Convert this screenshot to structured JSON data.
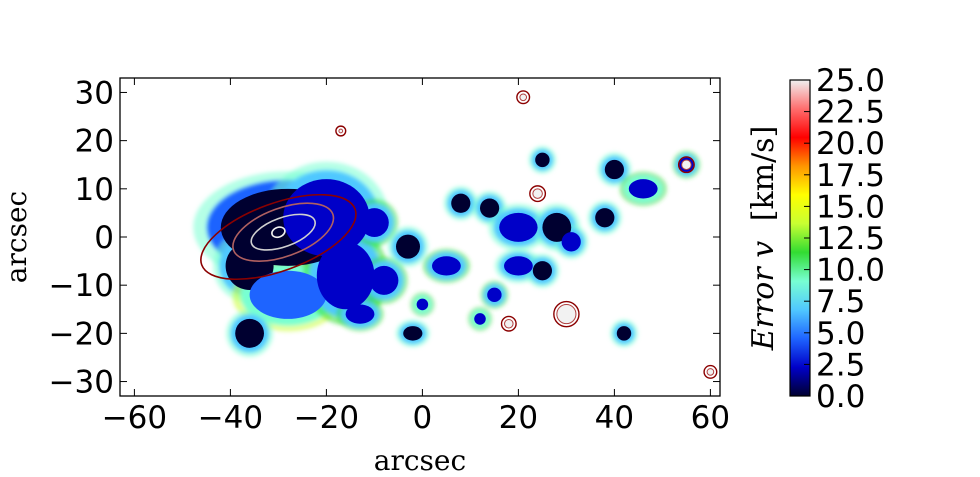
{
  "chart_data": {
    "type": "heatmap",
    "title": "",
    "xlabel": "arcsec",
    "ylabel": "arcsec",
    "xlim": [
      -63,
      62
    ],
    "ylim": [
      -33,
      33
    ],
    "xticks": [
      -60,
      -40,
      -20,
      0,
      20,
      40,
      60
    ],
    "xtick_labels": [
      "−60",
      "−40",
      "−20",
      "0",
      "20",
      "40",
      "60"
    ],
    "yticks": [
      -30,
      -20,
      -10,
      0,
      10,
      20,
      30
    ],
    "ytick_labels": [
      "−30",
      "−20",
      "−10",
      "0",
      "10",
      "20",
      "30"
    ],
    "colorbar": {
      "label": "Error v [km/s]",
      "label_parts": {
        "main": "Error v",
        "unit": "[km/s]"
      },
      "range": [
        0,
        25
      ],
      "ticks": [
        0,
        2.5,
        5,
        7.5,
        10,
        12.5,
        15,
        17.5,
        20,
        22.5,
        25
      ],
      "tick_labels": [
        "0.0",
        "2.5",
        "5.0",
        "7.5",
        "10.0",
        "12.5",
        "15.0",
        "17.5",
        "20.0",
        "22.5",
        "25.0"
      ],
      "colormap": [
        "#000030",
        "#0000c8",
        "#1e64ff",
        "#50c8ff",
        "#78ffd2",
        "#32dc32",
        "#c8ff32",
        "#ffff00",
        "#ff9600",
        "#ff0000",
        "#ff6e6e",
        "#f0f0f0"
      ]
    },
    "blobs": [
      {
        "x": -28,
        "y": 2,
        "rx": 14,
        "ry": 8,
        "v": 0.5
      },
      {
        "x": -20,
        "y": 4,
        "rx": 9,
        "ry": 8,
        "v": 1.2
      },
      {
        "x": -36,
        "y": -6,
        "rx": 5,
        "ry": 5,
        "v": 1.0
      },
      {
        "x": -28,
        "y": -12,
        "rx": 8,
        "ry": 5,
        "v": 3.5
      },
      {
        "x": -16,
        "y": -8,
        "rx": 6,
        "ry": 7,
        "v": 2.0
      },
      {
        "x": -36,
        "y": -20,
        "rx": 3,
        "ry": 3,
        "v": 1.0
      },
      {
        "x": -10,
        "y": 3,
        "rx": 3,
        "ry": 3,
        "v": 1.5
      },
      {
        "x": -8,
        "y": -9,
        "rx": 3,
        "ry": 3,
        "v": 1.5
      },
      {
        "x": -13,
        "y": -16,
        "rx": 3,
        "ry": 2,
        "v": 2.0
      },
      {
        "x": -3,
        "y": -2,
        "rx": 2.5,
        "ry": 2.5,
        "v": 1.0
      },
      {
        "x": 5,
        "y": -6,
        "rx": 3,
        "ry": 2,
        "v": 1.5
      },
      {
        "x": 8,
        "y": 7,
        "rx": 2,
        "ry": 2,
        "v": 1.0
      },
      {
        "x": 14,
        "y": 6,
        "rx": 2,
        "ry": 2,
        "v": 1.0
      },
      {
        "x": 20,
        "y": 2,
        "rx": 4,
        "ry": 3,
        "v": 1.2
      },
      {
        "x": 28,
        "y": 2,
        "rx": 3,
        "ry": 3,
        "v": 0.8
      },
      {
        "x": 20,
        "y": -6,
        "rx": 3,
        "ry": 2,
        "v": 1.2
      },
      {
        "x": 25,
        "y": -7,
        "rx": 2,
        "ry": 2,
        "v": 1.0
      },
      {
        "x": 31,
        "y": -1,
        "rx": 2,
        "ry": 2,
        "v": 1.2
      },
      {
        "x": 38,
        "y": 4,
        "rx": 2,
        "ry": 2,
        "v": 1.0
      },
      {
        "x": 40,
        "y": 14,
        "rx": 2,
        "ry": 2,
        "v": 1.0
      },
      {
        "x": 46,
        "y": 10,
        "rx": 3,
        "ry": 2,
        "v": 3.0
      },
      {
        "x": 25,
        "y": 16,
        "rx": 1.5,
        "ry": 1.5,
        "v": 1.0
      },
      {
        "x": -2,
        "y": -20,
        "rx": 2,
        "ry": 1.5,
        "v": 1.0
      },
      {
        "x": 42,
        "y": -20,
        "rx": 1.5,
        "ry": 1.5,
        "v": 1.0
      },
      {
        "x": 55,
        "y": 15,
        "rx": 1.5,
        "ry": 1.5,
        "v": 1.5
      },
      {
        "x": 15,
        "y": -12,
        "rx": 1.5,
        "ry": 1.5,
        "v": 1.5
      },
      {
        "x": 0,
        "y": -14,
        "rx": 1.2,
        "ry": 1.2,
        "v": 3.0
      },
      {
        "x": 12,
        "y": -17,
        "rx": 1.2,
        "ry": 1.2,
        "v": 3.0
      }
    ],
    "contours": [
      {
        "x": -30,
        "y": 0,
        "rx": 17,
        "ry": 7,
        "rotate": -20,
        "color": "#8b0000"
      },
      {
        "x": -29,
        "y": 1,
        "rx": 11,
        "ry": 5,
        "rotate": -20,
        "color": "#b06060"
      },
      {
        "x": -29,
        "y": 1,
        "rx": 7,
        "ry": 3,
        "rotate": -20,
        "color": "#d0d0d0"
      },
      {
        "x": -30,
        "y": 1,
        "rx": 1.4,
        "ry": 1,
        "rotate": -20,
        "color": "#f0f0f0"
      }
    ],
    "point_sources": [
      {
        "x": 21,
        "y": 29,
        "r": 0.9
      },
      {
        "x": -17,
        "y": 22,
        "r": 0.6
      },
      {
        "x": 24,
        "y": 9,
        "r": 1.2
      },
      {
        "x": 55,
        "y": 15,
        "r": 1.2
      },
      {
        "x": 18,
        "y": -18,
        "r": 1.1
      },
      {
        "x": 30,
        "y": -16,
        "r": 2.2
      },
      {
        "x": 60,
        "y": -28,
        "r": 0.9
      }
    ]
  }
}
